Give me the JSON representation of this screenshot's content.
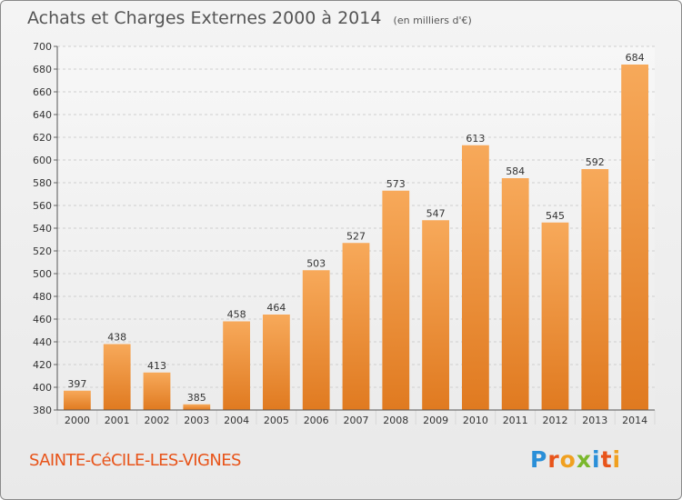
{
  "chart_data": {
    "type": "bar",
    "title": "Achats et Charges Externes 2000 à 2014",
    "unit": "(en milliers d'€)",
    "categories": [
      "2000",
      "2001",
      "2002",
      "2003",
      "2004",
      "2005",
      "2006",
      "2007",
      "2008",
      "2009",
      "2010",
      "2011",
      "2012",
      "2013",
      "2014"
    ],
    "values": [
      397,
      438,
      413,
      385,
      458,
      464,
      503,
      527,
      573,
      547,
      613,
      584,
      545,
      592,
      684
    ],
    "ylim": [
      380,
      700
    ],
    "yticks": [
      380,
      400,
      420,
      440,
      460,
      480,
      500,
      520,
      540,
      560,
      580,
      600,
      620,
      640,
      660,
      680,
      700
    ],
    "grid": true,
    "xlabel": "",
    "ylabel": ""
  },
  "location": "SAINTE-CéCILE-LES-VIGNES",
  "logo": {
    "letters": [
      "P",
      "r",
      "o",
      "x",
      "i",
      "t",
      "i"
    ],
    "colors": [
      "#2a8fd8",
      "#e8541a",
      "#f0a020",
      "#7ab82c",
      "#2a8fd8",
      "#e8541a",
      "#f0a020"
    ]
  },
  "colors": {
    "bar_light": "#f7a95a",
    "bar_dark": "#e07a20",
    "city": "#e8541a"
  }
}
